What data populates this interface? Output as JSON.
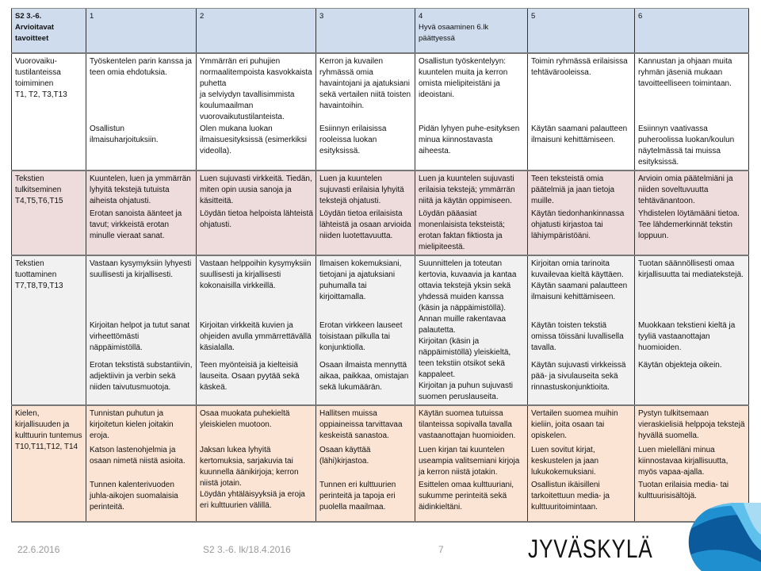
{
  "header": [
    "S2 3.-6.\nArvioitavat\ntavoitteet",
    "1",
    "2",
    "3",
    "4\nHyvä osaaminen 6.lk\npäättyessä",
    "5",
    "6"
  ],
  "rows": [
    {
      "label": "Vuorovaiku-\ntustilanteissa\ntoimiminen\nT1, T2, T3,T13",
      "cells": [
        [
          "Työskentelen parin kanssa ja teen omia ehdotuksia.",
          "Osallistun ilmaisuharjoituksiin."
        ],
        [
          "Ymmärrän eri puhujien normaalitempoista kasvokkaista puhetta\nja selviydyn tavallisimmista koulumaailman vuorovaikutustilanteista.",
          "Olen mukana luokan ilmaisuesityksissä (esimerkiksi videolla)."
        ],
        [
          "Kerron ja kuvailen ryhmässä omia havaintojani ja ajatuksiani sekä vertailen niitä toisten havaintoihin.",
          "Esiinnyn erilaisissa rooleissa luokan esityksissä."
        ],
        [
          "Osallistun työskentelyyn: kuuntelen muita ja kerron omista mielipiteistäni ja ideoistani.",
          "Pidän lyhyen puhe-esityksen minua kiinnostavasta aiheesta."
        ],
        [
          "Toimin ryhmässä erilaisissa tehtävärooleissa.",
          "Käytän saamani palautteen ilmaisuni kehittämiseen."
        ],
        [
          "Kannustan ja ohjaan muita ryhmän jäseniä mukaan tavoitteelliseen toimintaan.",
          "Esiinnyn vaativassa puheroolissa luokan/koulun näytelmässä tai muissa esityksissä."
        ]
      ]
    },
    {
      "label": "Tekstien\ntulkitseminen\nT4,T5,T6,T15",
      "cells": [
        [
          "Kuuntelen, luen ja ymmärrän lyhyitä tekstejä tutuista aiheista ohjatusti.",
          "Erotan sanoista äänteet ja tavut; virkkeistä erotan minulle vieraat sanat."
        ],
        [
          "Luen sujuvasti virkkeitä. Tiedän, miten opin uusia sanoja ja käsitteitä.",
          "Löydän tietoa helpoista lähteistä ohjatusti."
        ],
        [
          "Luen ja kuuntelen sujuvasti erilaisia lyhyitä tekstejä ohjatusti.",
          "Löydän tietoa erilaisista lähteistä ja osaan arvioida niiden luotettavuutta."
        ],
        [
          "Luen ja kuuntelen sujuvasti erilaisia tekstejä; ymmärrän niitä ja käytän oppimiseen.",
          "Löydän pääasiat monenlaisista teksteistä; erotan faktan fiktiosta ja mielipiteestä."
        ],
        [
          "Teen teksteistä omia päätelmiä ja jaan tietoja muille.",
          "Käytän tiedonhankinnassa ohjatusti kirjastoa tai lähiympäristöäni."
        ],
        [
          "Arvioin omia päätelmiäni ja niiden soveltuvuutta tehtävänantoon.",
          "Yhdistelen löytämääni tietoa. Tee lähdemerkinnät tekstin loppuun."
        ]
      ]
    },
    {
      "label": "Tekstien\ntuottaminen\n T7,T8,T9,T13",
      "cells": [
        [
          "Vastaan kysymyksiin lyhyesti suullisesti ja kirjallisesti.",
          "Kirjoitan helpot ja tutut sanat virheettömästi näppäimistöllä.",
          "Erotan tekstistä substantiivin, adjektiivin ja verbin sekä niiden taivutusmuotoja."
        ],
        [
          "Vastaan helppoihin kysymyksiin suullisesti ja kirjallisesti kokonaisilla virkkeillä.",
          "Kirjoitan virkkeitä kuvien ja ohjeiden avulla ymmärrettävällä käsialalla.",
          "Teen myönteisiä ja kielteisiä lauseita. Osaan pyytää sekä käskeä."
        ],
        [
          "Ilmaisen kokemuksiani, tietojani ja ajatuksiani puhumalla tai kirjoittamalla.",
          "Erotan virkkeen lauseet toisistaan pilkulla tai konjunktiolla.",
          "Osaan ilmaista mennyttä aikaa, paikkaa, omistajan sekä lukumäärän."
        ],
        [
          "Suunnittelen ja toteutan kertovia, kuvaavia ja kantaa ottavia tekstejä yksin sekä yhdessä muiden kanssa (käsin ja näppäimistöllä). Annan muille rakentavaa palautetta.",
          "Kirjoitan (käsin ja näppäimistöllä) yleiskieltä, teen tekstiin otsikot sekä kappaleet.",
          "Kirjoitan ja puhun sujuvasti suomen peruslauseita."
        ],
        [
          "Kirjoitan omia tarinoita kuvailevaa kieltä käyttäen.\nKäytän saamani palautteen ilmaisuni kehittämiseen.",
          "Käytän toisten tekstiä omissa töissäni luvallisella tavalla.",
          " Käytän sujuvasti virkkeissä pää- ja sivulauseita sekä rinnastuskonjunktioita."
        ],
        [
          "Tuotan säännöllisesti omaa kirjallisuutta tai mediatekstejä.",
          "Muokkaan tekstieni kieltä ja tyyliä vastaanottajan huomioiden.",
          " Käytän objekteja oikein."
        ]
      ]
    },
    {
      "label": "Kielen,\nkirjallisuuden ja\nkulttuurin tuntemus\nT10,T11,T12, T14",
      "cells": [
        [
          "Tunnistan puhutun ja kirjoitetun kielen joitakin eroja.",
          "Katson lastenohjelmia ja osaan nimetä niistä asioita.",
          "Tunnen kalenterivuoden juhla-aikojen suomalaisia perinteitä."
        ],
        [
          "Osaa muokata puhekieltä yleiskielen muotoon.",
          "Jaksan lukea lyhyitä kertomuksia, sarjakuvia tai kuunnella äänikirjoja; kerron niistä jotain.",
          "Löydän yhtäläisyyksiä ja eroja eri kulttuurien välillä."
        ],
        [
          "Hallitsen muissa oppiaineissa tarvittavaa keskeistä sanastoa.",
          "Osaan käyttää (lähi)kirjastoa.",
          "Tunnen eri kulttuurien perinteitä ja tapoja eri puolella maailmaa."
        ],
        [
          "Käytän suomea tutuissa tilanteissa sopivalla tavalla vastaanottajan huomioiden.",
          "Luen kirjan tai kuuntelen useampia valitsemiani kirjoja ja kerron niistä jotakin.",
          "Esittelen omaa kulttuuriani, sukumme perinteitä sekä äidinkieltäni."
        ],
        [
          "Vertailen suomea muihin kieliin, joita osaan tai opiskelen.",
          "Luen sovitut kirjat, keskustelen ja jaan lukukokemuksiani.",
          "Osallistun ikäisilleni tarkoitettuun media- ja kulttuuritoimintaan."
        ],
        [
          "Pystyn tulkitsemaan vieraskielisiä helppoja tekstejä hyvällä suomella.",
          "Luen mielelläni minua kiinnostavaa kirjallisuutta, myös vapaa-ajalla.",
          "Tuotan erilaisia media- tai kulttuurisisältöjä."
        ]
      ]
    }
  ],
  "footer": {
    "date": "22.6.2016",
    "title": "S2 3.-6. lk/18.4.2016",
    "page": "7"
  },
  "logo": {
    "text": "JYVÄSKYLÄ",
    "colors": [
      "#0a5a9c",
      "#1f8fd0",
      "#5fc0ec",
      "#a7dcf4"
    ]
  },
  "colors": {
    "header_bg": "#cfdcee",
    "row1_bg": "#ffffff",
    "row2_bg": "#eedcdd",
    "row3_bg": "#f1f1f1",
    "row4_bg": "#fbe4d3"
  }
}
